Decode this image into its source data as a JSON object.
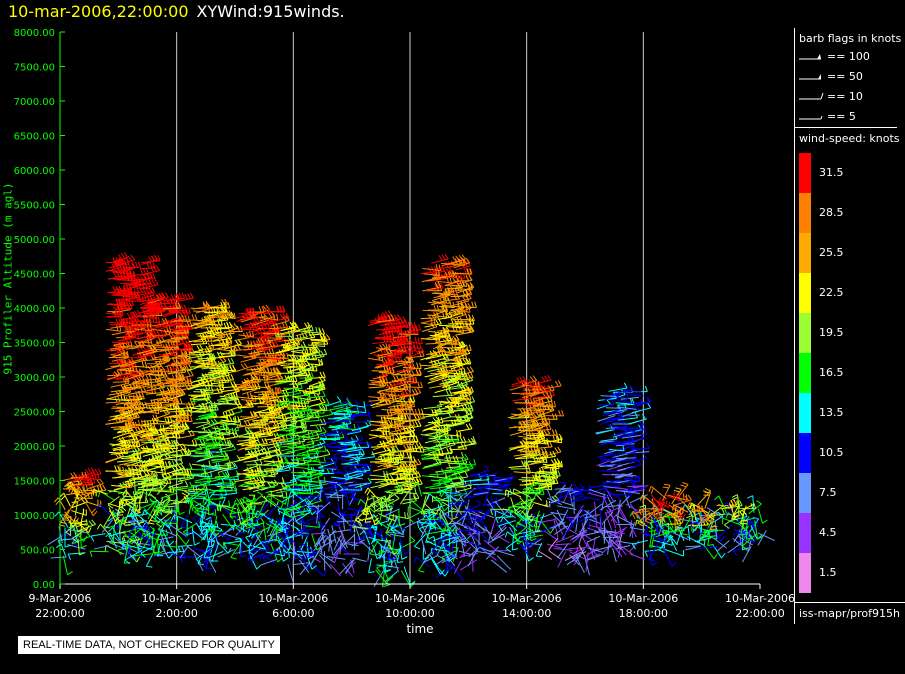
{
  "header": {
    "date": "10-mar-2006,22:00:00",
    "name": "XYWind:915winds."
  },
  "chart_data": {
    "type": "wind-barb-time-height",
    "title": "XYWind:915winds.",
    "xlabel": "time",
    "ylabel": "915 Profiler Altitude (m agl)",
    "ylim": [
      0,
      8000
    ],
    "yticks": [
      "0.00",
      "500.00",
      "1000.00",
      "1500.00",
      "2000.00",
      "2500.00",
      "3000.00",
      "3500.00",
      "4000.00",
      "4500.00",
      "5000.00",
      "5500.00",
      "6000.00",
      "6500.00",
      "7000.00",
      "7500.00",
      "8000.00"
    ],
    "xticks": [
      {
        "date": "9-Mar-2006",
        "time": "22:00:00"
      },
      {
        "date": "10-Mar-2006",
        "time": "2:00:00"
      },
      {
        "date": "10-Mar-2006",
        "time": "6:00:00"
      },
      {
        "date": "10-Mar-2006",
        "time": "10:00:00"
      },
      {
        "date": "10-Mar-2006",
        "time": "14:00:00"
      },
      {
        "date": "10-Mar-2006",
        "time": "18:00:00"
      },
      {
        "date": "10-Mar-2006",
        "time": "22:00:00"
      }
    ],
    "xrange_hours": [
      0,
      24
    ],
    "grid": "vertical",
    "clusters": [
      {
        "t": 0.3,
        "bottom": 400,
        "top": 1550,
        "speed": 26
      },
      {
        "t": 2.2,
        "bottom": 450,
        "top": 4700,
        "speed": 31
      },
      {
        "t": 3.4,
        "bottom": 450,
        "top": 4150,
        "speed": 28
      },
      {
        "t": 5.0,
        "bottom": 400,
        "top": 4000,
        "speed": 22
      },
      {
        "t": 6.6,
        "bottom": 450,
        "top": 3950,
        "speed": 27
      },
      {
        "t": 8.0,
        "bottom": 300,
        "top": 3700,
        "speed": 20
      },
      {
        "t": 9.5,
        "bottom": 300,
        "top": 2600,
        "speed": 12
      },
      {
        "t": 11.2,
        "bottom": 200,
        "top": 3800,
        "speed": 28
      },
      {
        "t": 13.0,
        "bottom": 250,
        "top": 4650,
        "speed": 25
      },
      {
        "t": 14.4,
        "bottom": 350,
        "top": 1600,
        "speed": 10
      },
      {
        "t": 16.0,
        "bottom": 600,
        "top": 2900,
        "speed": 26
      },
      {
        "t": 17.5,
        "bottom": 350,
        "top": 1400,
        "speed": 8
      },
      {
        "t": 19.0,
        "bottom": 450,
        "top": 2800,
        "speed": 10
      },
      {
        "t": 20.6,
        "bottom": 500,
        "top": 1300,
        "speed": 27
      },
      {
        "t": 22.0,
        "bottom": 550,
        "top": 1200,
        "speed": 24
      },
      {
        "t": 23.3,
        "bottom": 550,
        "top": 1150,
        "speed": 17
      }
    ]
  },
  "legend": {
    "barb_title": "barb flags in knots",
    "barbs": [
      {
        "label": "== 100",
        "icon": "barb-100-icon"
      },
      {
        "label": "== 50",
        "icon": "barb-50-icon"
      },
      {
        "label": "== 10",
        "icon": "barb-10-icon"
      },
      {
        "label": "== 5",
        "icon": "barb-5-icon"
      }
    ],
    "speed_title": "wind-speed: knots",
    "scale": [
      {
        "label": "31.5",
        "color": "#ff0000"
      },
      {
        "label": "28.5",
        "color": "#ff7f00"
      },
      {
        "label": "25.5",
        "color": "#ffaa00"
      },
      {
        "label": "22.5",
        "color": "#ffff00"
      },
      {
        "label": "19.5",
        "color": "#99ff33"
      },
      {
        "label": "16.5",
        "color": "#00ff00"
      },
      {
        "label": "13.5",
        "color": "#00ffff"
      },
      {
        "label": "10.5",
        "color": "#0000ff"
      },
      {
        "label": "7.5",
        "color": "#6699ff"
      },
      {
        "label": "4.5",
        "color": "#9933ff"
      },
      {
        "label": "1.5",
        "color": "#ee88ee"
      }
    ],
    "source": "iss-mapr/prof915h"
  },
  "notice": "REAL-TIME DATA, NOT CHECKED FOR QUALITY"
}
